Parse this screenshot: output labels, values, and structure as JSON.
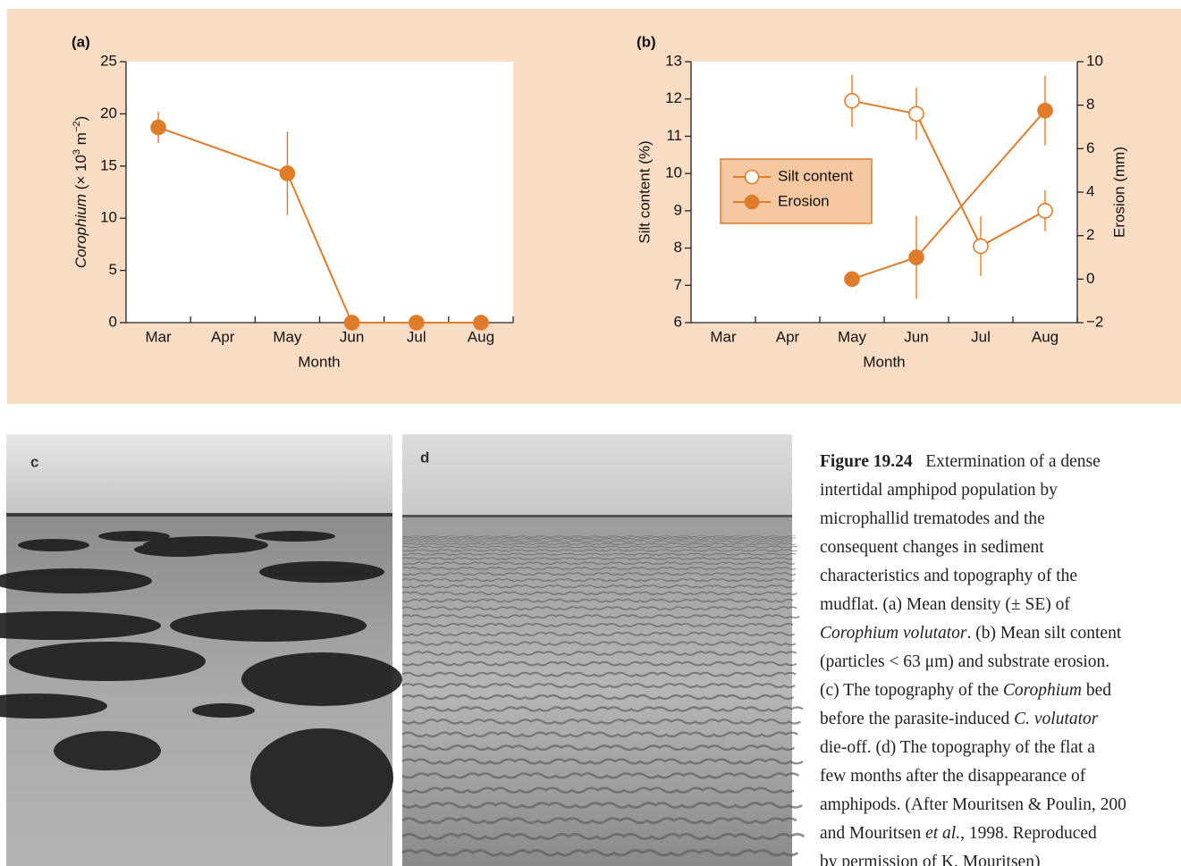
{
  "chart_data": [
    {
      "type": "line",
      "panel_label": "(a)",
      "xlabel": "Month",
      "ylabel": [
        "Corophium",
        " (× 10",
        "3",
        " m",
        "−2",
        ")"
      ],
      "categories": [
        "Mar",
        "Apr",
        "May",
        "Jun",
        "Jul",
        "Aug"
      ],
      "ylim": [
        0,
        25
      ],
      "yticks": [
        0,
        5,
        10,
        15,
        20,
        25
      ],
      "series": [
        {
          "color": "#e07b2a",
          "marker": "filled",
          "connect_nulls": true,
          "values": [
            18.7,
            null,
            14.3,
            0,
            0,
            0
          ],
          "errors": [
            1.5,
            null,
            4.0,
            null,
            null,
            null
          ]
        }
      ]
    },
    {
      "type": "line",
      "panel_label": "(b)",
      "xlabel": "Month",
      "ylabel": "Silt content (%)",
      "y2label": "Erosion (mm)",
      "categories": [
        "Mar",
        "Apr",
        "May",
        "Jun",
        "Jul",
        "Aug"
      ],
      "ylim": [
        6,
        13
      ],
      "yticks": [
        6,
        7,
        8,
        9,
        10,
        11,
        12,
        13
      ],
      "y2lim": [
        -2,
        10
      ],
      "y2ticks": [
        {
          "value": -2,
          "label": "−2"
        },
        0,
        2,
        4,
        6,
        8,
        10
      ],
      "legend": "left",
      "series": [
        {
          "name": "Silt content",
          "color": "#e07b2a",
          "marker": "open",
          "connect_nulls": true,
          "values": [
            null,
            null,
            11.95,
            11.6,
            8.05,
            9.0
          ],
          "errors": [
            null,
            null,
            0.7,
            0.7,
            0.8,
            0.55
          ]
        },
        {
          "name": "Erosion",
          "color": "#e07b2a",
          "marker": "filled",
          "axis": "y2",
          "connect_nulls": true,
          "values": [
            null,
            null,
            0,
            1.0,
            null,
            7.75
          ],
          "errors": [
            null,
            null,
            null,
            1.9,
            null,
            1.6
          ]
        }
      ]
    }
  ],
  "photos": [
    {
      "label": "c"
    },
    {
      "label": "d"
    }
  ],
  "caption": {
    "lines": [
      [
        "Figure 19.24",
        "   Extermination of a dense"
      ],
      [
        "intertidal amphipod population by"
      ],
      [
        "microphallid trematodes and the"
      ],
      [
        "consequent changes in sediment"
      ],
      [
        "characteristics and topography of the"
      ],
      [
        "mudflat. (a) Mean density (± SE) of"
      ],
      [
        "Corophium volutator",
        ". (b) Mean silt content"
      ],
      [
        "(particles < 63 μm) and substrate erosion."
      ],
      [
        "(c) The topography of the ",
        "Corophium",
        " bed"
      ],
      [
        "before the parasite-induced ",
        "C. volutator"
      ],
      [
        "die-off. (d) The topography of the flat a"
      ],
      [
        "few months after the disappearance of"
      ],
      [
        "amphipods. (After Mouritsen & Poulin, 200"
      ],
      [
        "and Mouritsen ",
        "et al.",
        ", 1998. Reproduced"
      ],
      [
        "by permission of K. Mouritsen)"
      ]
    ]
  }
}
